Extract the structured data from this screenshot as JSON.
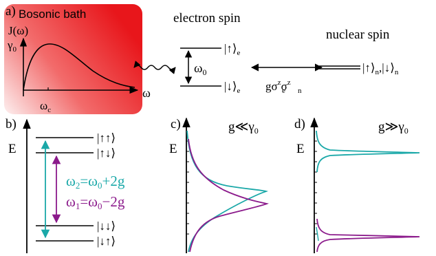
{
  "colors": {
    "bath_red": "#e8161b",
    "bath_light": "#fbeaea",
    "teal": "#1aa8a8",
    "purple": "#8b1a8b",
    "black": "#000000",
    "white": "#ffffff"
  },
  "panel_a": {
    "label": "a)",
    "bath_title": "Bosonic bath",
    "spectral_axis_label": "J(ω)",
    "gamma_label": "γ",
    "gamma_sub": "0",
    "omega_axis_label": "ω",
    "omega_c_label": "ω",
    "omega_c_sub": "c",
    "electron_title": "electron spin",
    "e_up_label": "|↑⟩",
    "e_down_label": "|↓⟩",
    "e_sub": "e",
    "omega0_label": "ω",
    "omega0_sub": "0",
    "coupling_label": "gσ",
    "coupling_sup1": "z",
    "coupling_mid": "σ",
    "coupling_sub_e": "e",
    "coupling_sub_n": "n",
    "coupling_sup2": "z",
    "nuclear_title": "nuclear spin",
    "nuclear_states_up": "|↑⟩",
    "nuclear_states_sep": ",",
    "nuclear_states_down": "|↓⟩",
    "n_sub": "n"
  },
  "panel_b": {
    "label": "b)",
    "energy_label": "E",
    "levels": [
      "|↑↑⟩",
      "|↑↓⟩",
      "|↓↓⟩",
      "|↓↑⟩"
    ],
    "omega2_eq": "ω",
    "omega2_sub": "2",
    "omega2_rhs": "=ω",
    "omega2_rhs_sub": "0",
    "omega2_tail": "+2g",
    "omega1_eq": "ω",
    "omega1_sub": "1",
    "omega1_rhs": "=ω",
    "omega1_rhs_sub": "0",
    "omega1_tail": "−2g"
  },
  "panel_c": {
    "label": "c)",
    "energy_label": "E",
    "condition": "g≪γ",
    "condition_sub": "0"
  },
  "panel_d": {
    "label": "d)",
    "energy_label": "E",
    "condition": "g≫γ",
    "condition_sub": "0"
  }
}
